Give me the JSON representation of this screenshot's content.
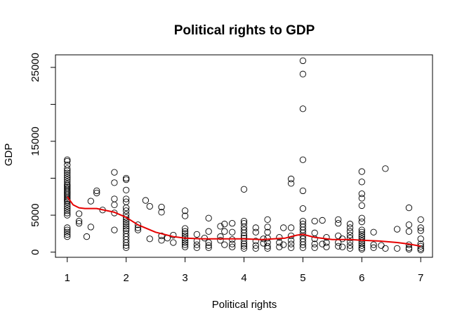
{
  "chart_data": {
    "type": "scatter",
    "title": "Political rights to GDP",
    "xlabel": "Political rights",
    "ylabel": "GDP",
    "xlim": [
      0.8,
      7.2
    ],
    "ylim": [
      -700,
      26700
    ],
    "x_ticks": [
      1,
      2,
      3,
      4,
      5,
      6,
      7
    ],
    "x_tick_labels": [
      "1",
      "2",
      "3",
      "4",
      "5",
      "6",
      "7"
    ],
    "y_ticks": [
      0,
      5000,
      15000,
      25000
    ],
    "y_tick_labels": [
      "0",
      "5000",
      "15000",
      "25000"
    ],
    "y_tick_marks": [
      0,
      5000,
      10000,
      15000,
      20000,
      25000
    ],
    "grid": false,
    "legend": "none",
    "colors": {
      "points": "#000000",
      "smooth_line": "#e60000",
      "axes": "#000000"
    },
    "points": [
      [
        1,
        12500
      ],
      [
        1,
        12300
      ],
      [
        1,
        11800
      ],
      [
        1,
        11300
      ],
      [
        1,
        11000
      ],
      [
        1,
        10700
      ],
      [
        1,
        10400
      ],
      [
        1,
        10100
      ],
      [
        1,
        9800
      ],
      [
        1,
        9500
      ],
      [
        1,
        9200
      ],
      [
        1,
        9000
      ],
      [
        1,
        8800
      ],
      [
        1,
        8600
      ],
      [
        1,
        8400
      ],
      [
        1,
        8200
      ],
      [
        1,
        8000
      ],
      [
        1,
        7800
      ],
      [
        1,
        7600
      ],
      [
        1,
        7400
      ],
      [
        1,
        7200
      ],
      [
        1,
        7000
      ],
      [
        1,
        6800
      ],
      [
        1,
        6500
      ],
      [
        1,
        6200
      ],
      [
        1,
        5900
      ],
      [
        1,
        5600
      ],
      [
        1,
        5300
      ],
      [
        1,
        5000
      ],
      [
        1,
        3300
      ],
      [
        1,
        3000
      ],
      [
        1,
        2700
      ],
      [
        1,
        2400
      ],
      [
        1,
        2100
      ],
      [
        1.2,
        5200
      ],
      [
        1.2,
        4200
      ],
      [
        1.2,
        3900
      ],
      [
        1.33,
        2100
      ],
      [
        1.4,
        6900
      ],
      [
        1.4,
        3400
      ],
      [
        1.5,
        8300
      ],
      [
        1.5,
        8000
      ],
      [
        1.6,
        5700
      ],
      [
        1.8,
        10800
      ],
      [
        1.8,
        9400
      ],
      [
        1.8,
        7200
      ],
      [
        1.8,
        6400
      ],
      [
        1.8,
        5300
      ],
      [
        1.8,
        3000
      ],
      [
        2,
        10000
      ],
      [
        2,
        9800
      ],
      [
        2,
        8400
      ],
      [
        2,
        7200
      ],
      [
        2,
        6800
      ],
      [
        2,
        6000
      ],
      [
        2,
        5600
      ],
      [
        2,
        5100
      ],
      [
        2,
        4700
      ],
      [
        2,
        4400
      ],
      [
        2,
        4100
      ],
      [
        2,
        3800
      ],
      [
        2,
        3500
      ],
      [
        2,
        3200
      ],
      [
        2,
        2900
      ],
      [
        2,
        2500
      ],
      [
        2,
        2100
      ],
      [
        2,
        1700
      ],
      [
        2,
        1300
      ],
      [
        2,
        900
      ],
      [
        2,
        600
      ],
      [
        2.2,
        3700
      ],
      [
        2.2,
        3300
      ],
      [
        2.2,
        3000
      ],
      [
        2.33,
        7000
      ],
      [
        2.4,
        6200
      ],
      [
        2.4,
        1800
      ],
      [
        2.6,
        6100
      ],
      [
        2.6,
        5400
      ],
      [
        2.6,
        2200
      ],
      [
        2.6,
        1600
      ],
      [
        2.7,
        1900
      ],
      [
        2.8,
        2300
      ],
      [
        2.8,
        1300
      ],
      [
        3,
        5600
      ],
      [
        3,
        4900
      ],
      [
        3,
        3200
      ],
      [
        3,
        2800
      ],
      [
        3,
        2500
      ],
      [
        3,
        2200
      ],
      [
        3,
        1900
      ],
      [
        3,
        1600
      ],
      [
        3,
        1300
      ],
      [
        3,
        1000
      ],
      [
        3,
        700
      ],
      [
        3.2,
        2400
      ],
      [
        3.2,
        1500
      ],
      [
        3.2,
        1000
      ],
      [
        3.2,
        600
      ],
      [
        3.33,
        1900
      ],
      [
        3.4,
        4600
      ],
      [
        3.4,
        2800
      ],
      [
        3.4,
        1300
      ],
      [
        3.4,
        900
      ],
      [
        3.4,
        600
      ],
      [
        3.6,
        3500
      ],
      [
        3.6,
        2100
      ],
      [
        3.6,
        1600
      ],
      [
        3.67,
        3800
      ],
      [
        3.67,
        2800
      ],
      [
        3.67,
        1000
      ],
      [
        3.8,
        3900
      ],
      [
        3.8,
        2700
      ],
      [
        3.8,
        1700
      ],
      [
        3.8,
        1100
      ],
      [
        3.8,
        700
      ],
      [
        4,
        8500
      ],
      [
        4,
        4200
      ],
      [
        4,
        3900
      ],
      [
        4,
        3400
      ],
      [
        4,
        3000
      ],
      [
        4,
        2600
      ],
      [
        4,
        2200
      ],
      [
        4,
        1900
      ],
      [
        4,
        1500
      ],
      [
        4,
        1100
      ],
      [
        4,
        800
      ],
      [
        4,
        500
      ],
      [
        4.2,
        3300
      ],
      [
        4.2,
        2700
      ],
      [
        4.2,
        1500
      ],
      [
        4.2,
        900
      ],
      [
        4.2,
        500
      ],
      [
        4.33,
        1800
      ],
      [
        4.33,
        1200
      ],
      [
        4.4,
        4400
      ],
      [
        4.4,
        3400
      ],
      [
        4.4,
        2700
      ],
      [
        4.4,
        1900
      ],
      [
        4.4,
        1300
      ],
      [
        4.4,
        800
      ],
      [
        4.4,
        500
      ],
      [
        4.6,
        2000
      ],
      [
        4.6,
        1300
      ],
      [
        4.6,
        700
      ],
      [
        4.67,
        3300
      ],
      [
        4.67,
        1000
      ],
      [
        4.8,
        9900
      ],
      [
        4.8,
        9300
      ],
      [
        4.8,
        3300
      ],
      [
        4.8,
        2200
      ],
      [
        4.8,
        1600
      ],
      [
        4.8,
        1100
      ],
      [
        4.8,
        600
      ],
      [
        5,
        25900
      ],
      [
        5,
        24100
      ],
      [
        5,
        19400
      ],
      [
        5,
        12500
      ],
      [
        5,
        8300
      ],
      [
        5,
        5900
      ],
      [
        5,
        4200
      ],
      [
        5,
        3800
      ],
      [
        5,
        3400
      ],
      [
        5,
        3000
      ],
      [
        5,
        2600
      ],
      [
        5,
        2200
      ],
      [
        5,
        1800
      ],
      [
        5,
        1400
      ],
      [
        5,
        1000
      ],
      [
        5,
        600
      ],
      [
        5.2,
        4200
      ],
      [
        5.2,
        2600
      ],
      [
        5.2,
        1800
      ],
      [
        5.2,
        1100
      ],
      [
        5.2,
        600
      ],
      [
        5.33,
        4300
      ],
      [
        5.33,
        1100
      ],
      [
        5.4,
        2000
      ],
      [
        5.4,
        1300
      ],
      [
        5.4,
        700
      ],
      [
        5.6,
        4400
      ],
      [
        5.6,
        3900
      ],
      [
        5.6,
        2200
      ],
      [
        5.6,
        1300
      ],
      [
        5.6,
        800
      ],
      [
        5.67,
        1800
      ],
      [
        5.67,
        700
      ],
      [
        5.8,
        3800
      ],
      [
        5.8,
        3300
      ],
      [
        5.8,
        2800
      ],
      [
        5.8,
        2300
      ],
      [
        5.8,
        1900
      ],
      [
        5.8,
        1400
      ],
      [
        5.8,
        900
      ],
      [
        5.8,
        500
      ],
      [
        6,
        10900
      ],
      [
        6,
        9500
      ],
      [
        6,
        7900
      ],
      [
        6,
        7300
      ],
      [
        6,
        6300
      ],
      [
        6,
        4600
      ],
      [
        6,
        4100
      ],
      [
        6,
        3000
      ],
      [
        6,
        2700
      ],
      [
        6,
        2400
      ],
      [
        6,
        2100
      ],
      [
        6,
        1800
      ],
      [
        6,
        1500
      ],
      [
        6,
        1200
      ],
      [
        6,
        900
      ],
      [
        6,
        600
      ],
      [
        6,
        400
      ],
      [
        6.2,
        2700
      ],
      [
        6.2,
        1000
      ],
      [
        6.2,
        600
      ],
      [
        6.33,
        900
      ],
      [
        6.4,
        11300
      ],
      [
        6.4,
        500
      ],
      [
        6.6,
        3100
      ],
      [
        6.6,
        500
      ],
      [
        6.8,
        6000
      ],
      [
        6.8,
        3700
      ],
      [
        6.8,
        2800
      ],
      [
        6.8,
        1000
      ],
      [
        6.8,
        600
      ],
      [
        6.8,
        400
      ],
      [
        7,
        4400
      ],
      [
        7,
        3300
      ],
      [
        7,
        2900
      ],
      [
        7,
        1800
      ],
      [
        7,
        1100
      ],
      [
        7,
        800
      ],
      [
        7,
        500
      ],
      [
        7,
        300
      ]
    ],
    "smooth_line": [
      [
        1,
        7500
      ],
      [
        1.1,
        6400
      ],
      [
        1.2,
        6000
      ],
      [
        1.3,
        5900
      ],
      [
        1.5,
        5900
      ],
      [
        1.8,
        5400
      ],
      [
        2,
        4700
      ],
      [
        2.2,
        3700
      ],
      [
        2.5,
        2700
      ],
      [
        2.8,
        2100
      ],
      [
        3,
        1900
      ],
      [
        3.3,
        1800
      ],
      [
        3.5,
        1800
      ],
      [
        3.8,
        1800
      ],
      [
        4,
        1800
      ],
      [
        4.3,
        1700
      ],
      [
        4.5,
        1800
      ],
      [
        4.7,
        1900
      ],
      [
        4.9,
        2300
      ],
      [
        5,
        2400
      ],
      [
        5.2,
        2000
      ],
      [
        5.5,
        1700
      ],
      [
        5.8,
        1700
      ],
      [
        6,
        1600
      ],
      [
        6.3,
        1500
      ],
      [
        6.6,
        1300
      ],
      [
        6.8,
        1100
      ],
      [
        7,
        800
      ]
    ]
  }
}
